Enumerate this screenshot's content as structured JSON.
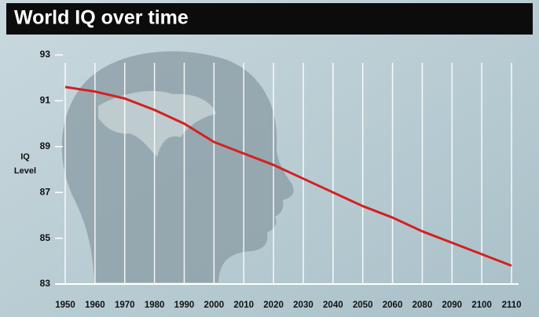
{
  "chart_data": {
    "type": "line",
    "title": "World IQ over time",
    "y_label": "IQ Level",
    "categories": [
      "1950",
      "1960",
      "1970",
      "1980",
      "1990",
      "2000",
      "2010",
      "2020",
      "2030",
      "2040",
      "2050",
      "2060",
      "2080",
      "2090",
      "2100",
      "2110"
    ],
    "series": [
      {
        "color": "#d42020",
        "values": [
          91.6,
          91.4,
          91.1,
          90.6,
          90.0,
          89.2,
          88.7,
          88.2,
          87.6,
          87.0,
          86.4,
          85.9,
          85.3,
          84.8,
          84.3,
          83.8
        ]
      }
    ],
    "ylim": [
      83,
      93
    ],
    "yticks": [
      83,
      85,
      87,
      89,
      91,
      93
    ],
    "grid": true
  }
}
